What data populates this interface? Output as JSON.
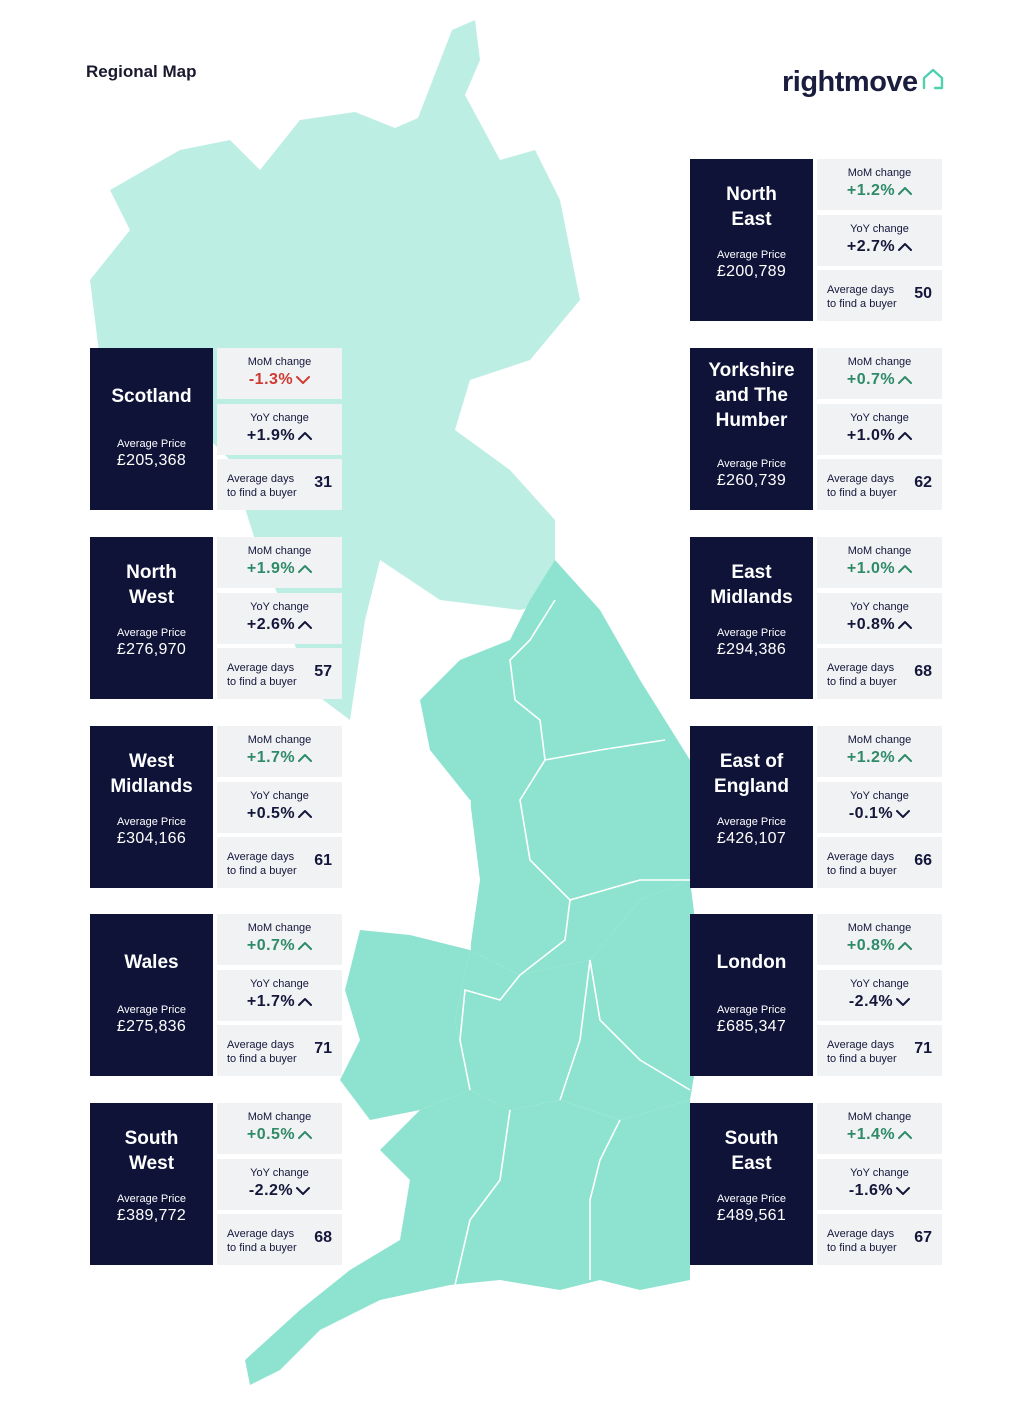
{
  "header": {
    "title": "Regional Map",
    "brand": "rightmove"
  },
  "labels": {
    "mom": "MoM change",
    "yoy": "YoY change",
    "avg_price": "Average Price",
    "days_line1": "Average days",
    "days_line2": "to find a buyer"
  },
  "colors": {
    "navy": "#0f1338",
    "scotland": "#bdeee4",
    "england_wales": "#8de3cf",
    "up": "#2e8a67",
    "down": "#cf3a32"
  },
  "regions": [
    {
      "name_lines": [
        "Scotland"
      ],
      "avg_price": "£205,368",
      "mom": "-1.3%",
      "mom_dir": "down",
      "yoy": "+1.9%",
      "yoy_dir": "up",
      "days": "31"
    },
    {
      "name_lines": [
        "North",
        "West"
      ],
      "avg_price": "£276,970",
      "mom": "+1.9%",
      "mom_dir": "up",
      "yoy": "+2.6%",
      "yoy_dir": "up",
      "days": "57"
    },
    {
      "name_lines": [
        "West",
        "Midlands"
      ],
      "avg_price": "£304,166",
      "mom": "+1.7%",
      "mom_dir": "up",
      "yoy": "+0.5%",
      "yoy_dir": "up",
      "days": "61"
    },
    {
      "name_lines": [
        "Wales"
      ],
      "avg_price": "£275,836",
      "mom": "+0.7%",
      "mom_dir": "up",
      "yoy": "+1.7%",
      "yoy_dir": "up",
      "days": "71"
    },
    {
      "name_lines": [
        "South",
        "West"
      ],
      "avg_price": "£389,772",
      "mom": "+0.5%",
      "mom_dir": "up",
      "yoy": "-2.2%",
      "yoy_dir": "down",
      "days": "68"
    },
    {
      "name_lines": [
        "North",
        "East"
      ],
      "avg_price": "£200,789",
      "mom": "+1.2%",
      "mom_dir": "up",
      "yoy": "+2.7%",
      "yoy_dir": "up",
      "days": "50"
    },
    {
      "name_lines": [
        "Yorkshire",
        "and The",
        "Humber"
      ],
      "avg_price": "£260,739",
      "mom": "+0.7%",
      "mom_dir": "up",
      "yoy": "+1.0%",
      "yoy_dir": "up",
      "days": "62"
    },
    {
      "name_lines": [
        "East",
        "Midlands"
      ],
      "avg_price": "£294,386",
      "mom": "+1.0%",
      "mom_dir": "up",
      "yoy": "+0.8%",
      "yoy_dir": "up",
      "days": "68"
    },
    {
      "name_lines": [
        "East of",
        "England"
      ],
      "avg_price": "£426,107",
      "mom": "+1.2%",
      "mom_dir": "up",
      "yoy": "-0.1%",
      "yoy_dir": "down",
      "days": "66"
    },
    {
      "name_lines": [
        "London"
      ],
      "avg_price": "£685,347",
      "mom": "+0.8%",
      "mom_dir": "up",
      "yoy": "-2.4%",
      "yoy_dir": "down",
      "days": "71"
    },
    {
      "name_lines": [
        "South",
        "East"
      ],
      "avg_price": "£489,561",
      "mom": "+1.4%",
      "mom_dir": "up",
      "yoy": "-1.6%",
      "yoy_dir": "down",
      "days": "67"
    }
  ]
}
